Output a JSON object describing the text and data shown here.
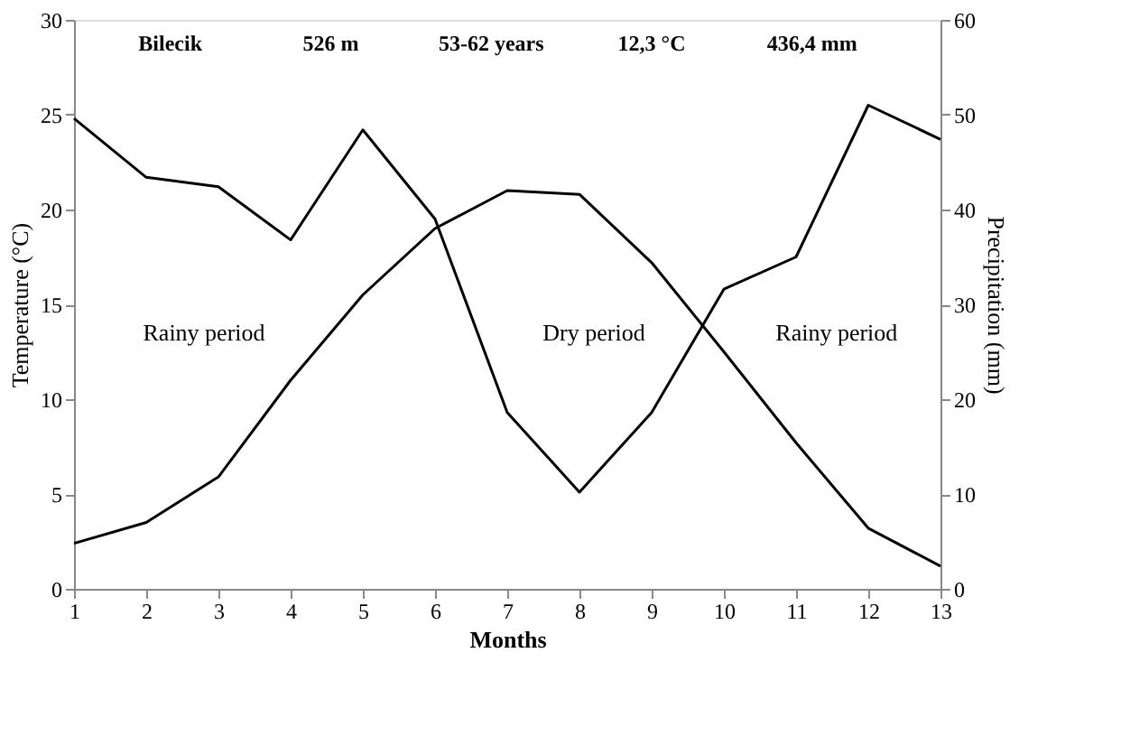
{
  "chart_data": {
    "type": "line",
    "xlabel": "Months",
    "ylabel": "Temperature (°C)",
    "y2label": "Precipitation (mm)",
    "x": [
      1,
      2,
      3,
      4,
      5,
      6,
      7,
      8,
      9,
      10,
      11,
      12,
      13
    ],
    "series": [
      {
        "color": "#000000",
        "values": [
          2.4,
          3.5,
          5.9,
          11,
          15.5,
          19,
          21,
          20.8,
          17.2,
          12.5,
          7.7,
          3.2,
          1.2
        ]
      },
      {
        "color": "#000000",
        "axis": "y2",
        "values": [
          49.6,
          43.4,
          42.4,
          36.8,
          48.4,
          39,
          18.6,
          10.2,
          18.6,
          31.6,
          35,
          51,
          47.4
        ]
      }
    ],
    "xlim": [
      1,
      13
    ],
    "xticks": [
      1,
      2,
      3,
      4,
      5,
      6,
      7,
      8,
      9,
      10,
      11,
      12,
      13
    ],
    "ylim": [
      0,
      30
    ],
    "yticks": [
      0,
      5,
      10,
      15,
      20,
      25,
      30
    ],
    "y2lim": [
      0,
      60
    ],
    "y2ticks": [
      0,
      10,
      20,
      30,
      40,
      50,
      60
    ],
    "grid": false,
    "marker": "none",
    "line_style": "solid",
    "annotations": [
      "Bilecik",
      "526 m",
      "53-62 years",
      "12,3 °C",
      "436,4 mm",
      "Rainy period",
      "Dry period",
      "Rainy period"
    ]
  }
}
